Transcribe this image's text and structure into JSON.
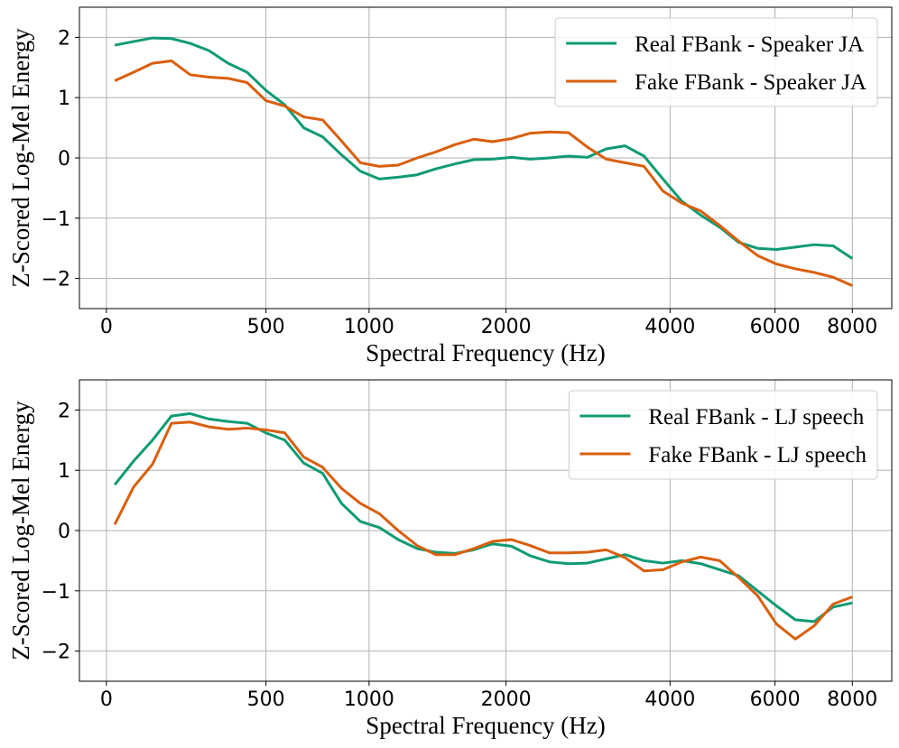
{
  "chart_data": [
    {
      "type": "line",
      "xlabel": "Spectral Frequency (Hz)",
      "ylabel": "Z-Scored Log-Mel Energy",
      "xscale": "mel",
      "grid": true,
      "legend": "upper right",
      "xlim": [
        -61,
        9240
      ],
      "ylim": [
        -2.5,
        2.5
      ],
      "xticks": [
        0,
        500,
        1000,
        2000,
        4000,
        6000,
        8000
      ],
      "yticks": [
        {
          "value": -2,
          "label": "−2"
        },
        {
          "value": -1,
          "label": "−1"
        },
        0,
        1,
        2
      ],
      "x": [
        20,
        67,
        118,
        172,
        229,
        290,
        356,
        426,
        500,
        579,
        663,
        753,
        849,
        951,
        1060,
        1176,
        1300,
        1431,
        1572,
        1721,
        1881,
        2051,
        2232,
        2428,
        2634,
        2854,
        3088,
        3338,
        3604,
        3888,
        4191,
        4513,
        4858,
        5225,
        5616,
        6032,
        6476,
        6949,
        7454,
        8000
      ],
      "series": [
        {
          "name": "Real FBank - Speaker JA",
          "color": "#0f9b74",
          "values": [
            1.87,
            1.93,
            1.99,
            1.98,
            1.9,
            1.78,
            1.57,
            1.42,
            1.12,
            0.88,
            0.5,
            0.35,
            0.05,
            -0.22,
            -0.35,
            -0.32,
            -0.28,
            -0.18,
            -0.1,
            -0.03,
            -0.02,
            0.01,
            -0.02,
            0.0,
            0.03,
            0.01,
            0.15,
            0.2,
            0.03,
            -0.35,
            -0.72,
            -0.95,
            -1.15,
            -1.4,
            -1.5,
            -1.52,
            -1.48,
            -1.44,
            -1.46,
            -1.67
          ]
        },
        {
          "name": "Fake FBank - Speaker JA",
          "color": "#d95f0e",
          "values": [
            1.28,
            1.42,
            1.57,
            1.61,
            1.38,
            1.34,
            1.32,
            1.25,
            0.95,
            0.86,
            0.68,
            0.63,
            0.28,
            -0.08,
            -0.14,
            -0.12,
            0.0,
            0.1,
            0.22,
            0.31,
            0.27,
            0.32,
            0.41,
            0.43,
            0.42,
            0.18,
            -0.02,
            -0.08,
            -0.14,
            -0.55,
            -0.75,
            -0.88,
            -1.12,
            -1.38,
            -1.62,
            -1.76,
            -1.84,
            -1.9,
            -1.98,
            -2.12
          ]
        }
      ]
    },
    {
      "type": "line",
      "xlabel": "Spectral Frequency (Hz)",
      "ylabel": "Z-Scored Log-Mel Energy",
      "xscale": "mel",
      "grid": true,
      "legend": "upper right",
      "xlim": [
        -61,
        9240
      ],
      "ylim": [
        -2.5,
        2.5
      ],
      "xticks": [
        0,
        500,
        1000,
        2000,
        4000,
        6000,
        8000
      ],
      "yticks": [
        {
          "value": -2,
          "label": "−2"
        },
        {
          "value": -1,
          "label": "−1"
        },
        0,
        1,
        2
      ],
      "x": [
        20,
        67,
        118,
        172,
        229,
        290,
        356,
        426,
        500,
        579,
        663,
        753,
        849,
        951,
        1060,
        1176,
        1300,
        1431,
        1572,
        1721,
        1881,
        2051,
        2232,
        2428,
        2634,
        2854,
        3088,
        3338,
        3604,
        3888,
        4191,
        4513,
        4858,
        5225,
        5616,
        6032,
        6476,
        6949,
        7454,
        8000
      ],
      "series": [
        {
          "name": "Real FBank - LJ speech",
          "color": "#0f9b74",
          "values": [
            0.76,
            1.15,
            1.5,
            1.9,
            1.94,
            1.85,
            1.81,
            1.78,
            1.62,
            1.5,
            1.12,
            0.95,
            0.45,
            0.15,
            0.05,
            -0.15,
            -0.3,
            -0.36,
            -0.38,
            -0.32,
            -0.22,
            -0.26,
            -0.42,
            -0.52,
            -0.55,
            -0.54,
            -0.47,
            -0.4,
            -0.5,
            -0.54,
            -0.5,
            -0.55,
            -0.65,
            -0.75,
            -1.0,
            -1.25,
            -1.48,
            -1.51,
            -1.27,
            -1.2
          ]
        },
        {
          "name": "Fake FBank - LJ speech",
          "color": "#d95f0e",
          "values": [
            0.1,
            0.72,
            1.1,
            1.78,
            1.8,
            1.72,
            1.68,
            1.7,
            1.67,
            1.62,
            1.22,
            1.05,
            0.7,
            0.45,
            0.28,
            0.0,
            -0.25,
            -0.4,
            -0.4,
            -0.3,
            -0.18,
            -0.15,
            -0.25,
            -0.37,
            -0.37,
            -0.36,
            -0.32,
            -0.45,
            -0.67,
            -0.65,
            -0.52,
            -0.44,
            -0.5,
            -0.78,
            -1.08,
            -1.55,
            -1.8,
            -1.58,
            -1.22,
            -1.1
          ]
        }
      ]
    }
  ]
}
